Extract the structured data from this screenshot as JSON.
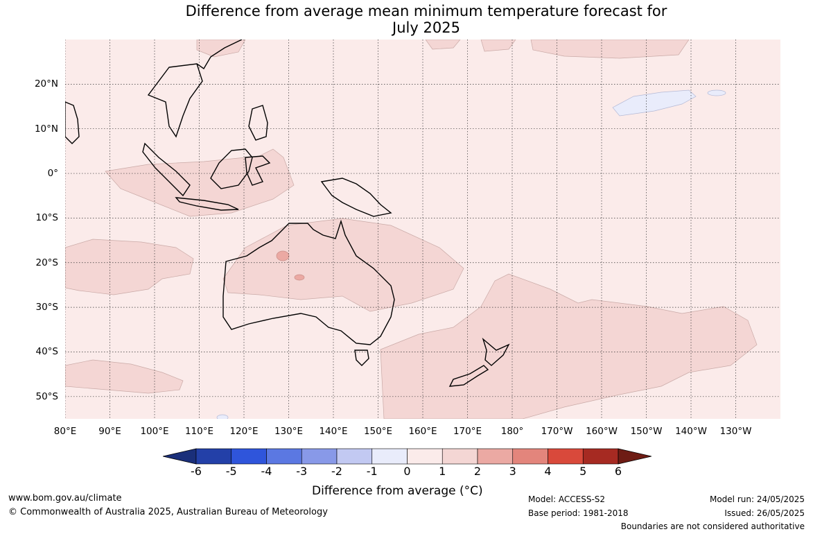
{
  "title": {
    "line1": "Difference from average mean minimum temperature forecast for",
    "line2": "July 2025"
  },
  "map": {
    "lon_range": [
      80,
      240
    ],
    "lat_range": [
      -55,
      30
    ],
    "ocean_color": "#fbebea",
    "lat_labels": [
      {
        "lat": 20,
        "text": "20°N"
      },
      {
        "lat": 10,
        "text": "10°N"
      },
      {
        "lat": 0,
        "text": "0°"
      },
      {
        "lat": -10,
        "text": "10°S"
      },
      {
        "lat": -20,
        "text": "20°S"
      },
      {
        "lat": -30,
        "text": "30°S"
      },
      {
        "lat": -40,
        "text": "40°S"
      },
      {
        "lat": -50,
        "text": "50°S"
      }
    ],
    "lon_labels": [
      {
        "lon": 80,
        "text": "80°E"
      },
      {
        "lon": 90,
        "text": "90°E"
      },
      {
        "lon": 100,
        "text": "100°E"
      },
      {
        "lon": 110,
        "text": "110°E"
      },
      {
        "lon": 120,
        "text": "120°E"
      },
      {
        "lon": 130,
        "text": "130°E"
      },
      {
        "lon": 140,
        "text": "140°E"
      },
      {
        "lon": 150,
        "text": "150°E"
      },
      {
        "lon": 160,
        "text": "160°E"
      },
      {
        "lon": 170,
        "text": "170°E"
      },
      {
        "lon": 180,
        "text": "180°"
      },
      {
        "lon": 190,
        "text": "170°W"
      },
      {
        "lon": 200,
        "text": "160°W"
      },
      {
        "lon": 210,
        "text": "150°W"
      },
      {
        "lon": 220,
        "text": "140°W"
      },
      {
        "lon": 230,
        "text": "130°W"
      }
    ]
  },
  "colorbar": {
    "below_color": "#1a2f7a",
    "above_color": "#6e1c14",
    "bins": [
      {
        "from": -6,
        "to": -5,
        "color": "#2340a8"
      },
      {
        "from": -5,
        "to": -4,
        "color": "#2f55db"
      },
      {
        "from": -4,
        "to": -3,
        "color": "#5b78e2"
      },
      {
        "from": -3,
        "to": -2,
        "color": "#8899e8"
      },
      {
        "from": -2,
        "to": -1,
        "color": "#c2c9f2"
      },
      {
        "from": -1,
        "to": 0,
        "color": "#e9ecfb"
      },
      {
        "from": 0,
        "to": 1,
        "color": "#fbebea"
      },
      {
        "from": 1,
        "to": 2,
        "color": "#f4d6d4"
      },
      {
        "from": 2,
        "to": 3,
        "color": "#eba9a3"
      },
      {
        "from": 3,
        "to": 4,
        "color": "#e3857c"
      },
      {
        "from": 4,
        "to": 5,
        "color": "#d9493b"
      },
      {
        "from": 5,
        "to": 6,
        "color": "#a62a22"
      }
    ],
    "ticks": [
      "-6",
      "-5",
      "-4",
      "-3",
      "-2",
      "-1",
      "0",
      "1",
      "2",
      "3",
      "4",
      "5",
      "6"
    ],
    "label": "Difference from average (°C)"
  },
  "footer": {
    "website": "www.bom.gov.au/climate",
    "copyright": "© Commonwealth of Australia 2025, Australian Bureau of Meteorology",
    "model": "Model: ACCESS-S2",
    "base_period": "Base period: 1981-2018",
    "model_run": "Model run: 24/05/2025",
    "issued": "Issued: 26/05/2025",
    "disclaimer": "Boundaries are not considered authoritative"
  }
}
